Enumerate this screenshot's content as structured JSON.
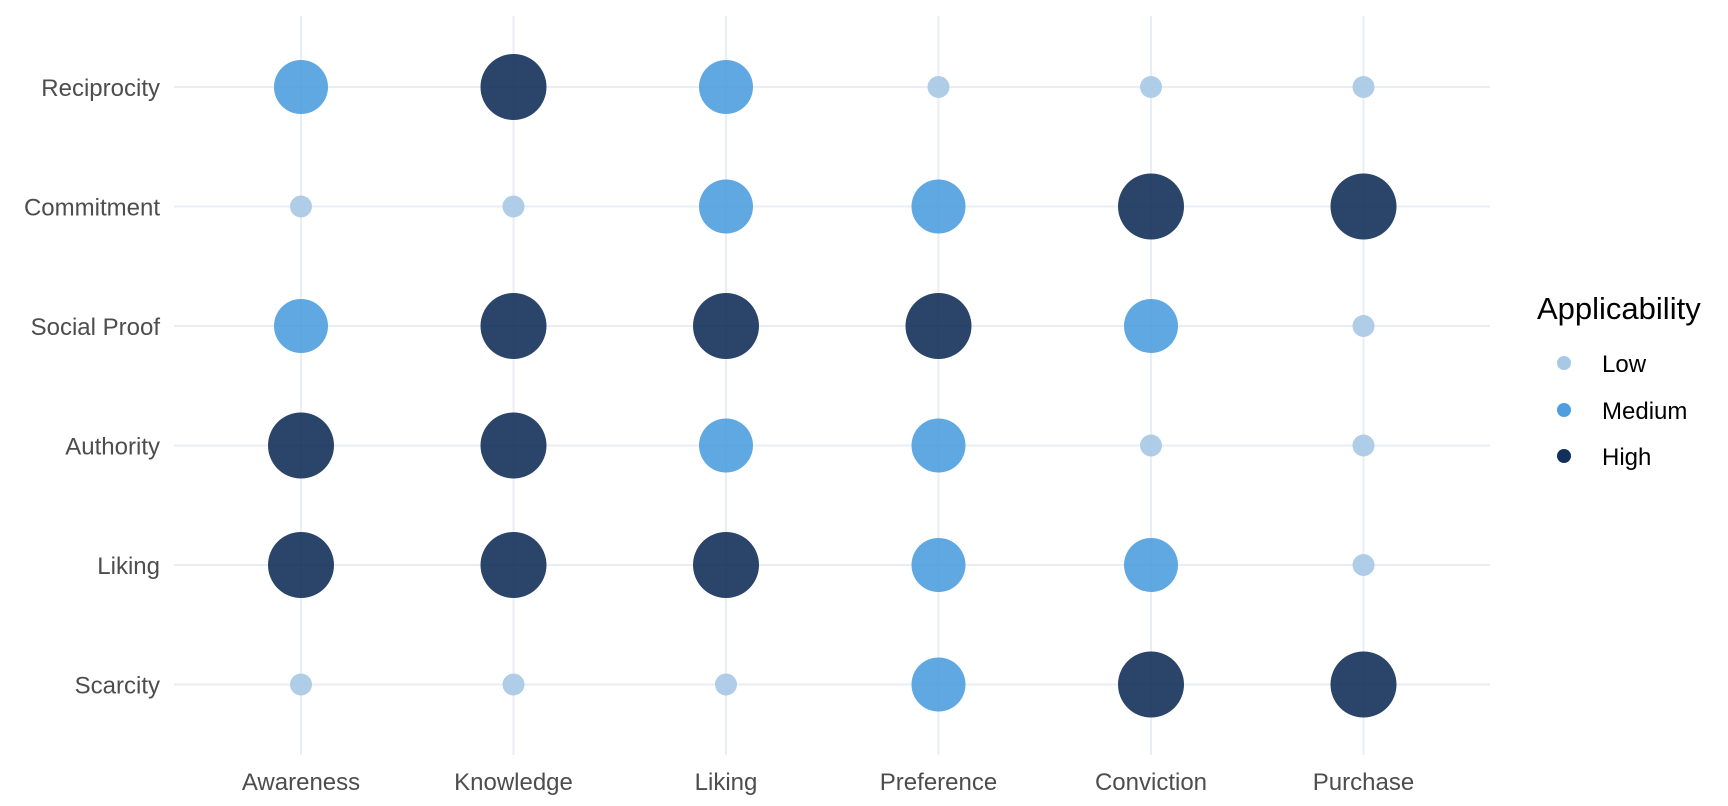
{
  "chart_data": {
    "type": "scatter",
    "title": "",
    "xlabel": "",
    "ylabel": "",
    "x_categories": [
      "Awareness",
      "Knowledge",
      "Liking",
      "Preference",
      "Conviction",
      "Purchase"
    ],
    "y_categories": [
      "Reciprocity",
      "Commitment",
      "Social Proof",
      "Authority",
      "Liking",
      "Scarcity"
    ],
    "grid": true,
    "legend": {
      "title": "Applicability",
      "position": "right",
      "levels": [
        {
          "name": "Low",
          "color": "#a7c8e6"
        },
        {
          "name": "Medium",
          "color": "#4e9fdf"
        },
        {
          "name": "High",
          "color": "#13305a"
        }
      ]
    },
    "points": [
      {
        "y": "Reciprocity",
        "values": [
          "Medium",
          "High",
          "Medium",
          "Low",
          "Low",
          "Low"
        ]
      },
      {
        "y": "Commitment",
        "values": [
          "Low",
          "Low",
          "Medium",
          "Medium",
          "High",
          "High"
        ]
      },
      {
        "y": "Social Proof",
        "values": [
          "Medium",
          "High",
          "High",
          "High",
          "Medium",
          "Low"
        ]
      },
      {
        "y": "Authority",
        "values": [
          "High",
          "High",
          "Medium",
          "Medium",
          "Low",
          "Low"
        ]
      },
      {
        "y": "Liking",
        "values": [
          "High",
          "High",
          "High",
          "Medium",
          "Medium",
          "Low"
        ]
      },
      {
        "y": "Scarcity",
        "values": [
          "Low",
          "Low",
          "Low",
          "Medium",
          "High",
          "High"
        ]
      }
    ]
  }
}
